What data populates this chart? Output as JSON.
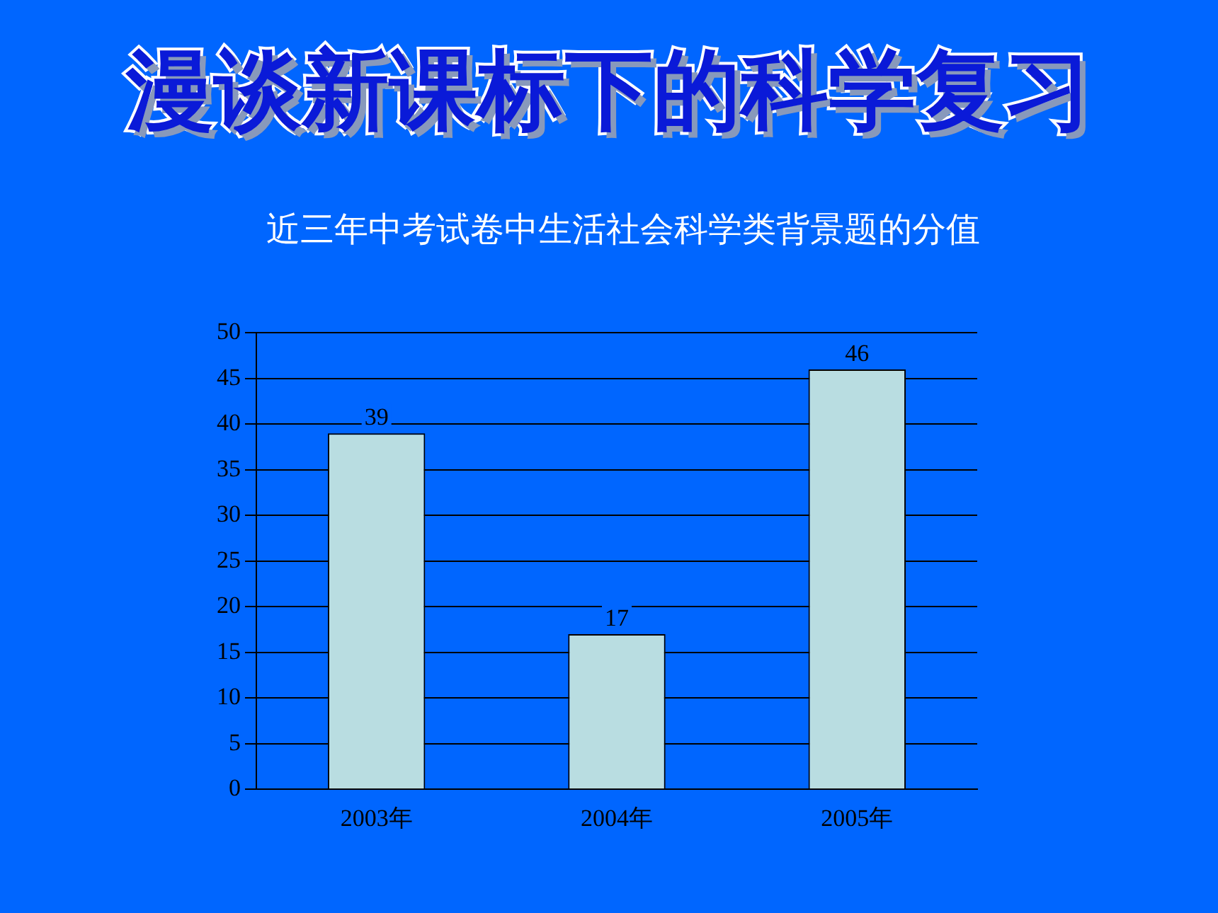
{
  "chart_data": {
    "type": "bar",
    "title": "漫谈新课标下的科学复习",
    "subtitle": "近三年中考试卷中生活社会科学类背景题的分值",
    "categories": [
      "2003年",
      "2004年",
      "2005年"
    ],
    "values": [
      39,
      17,
      46
    ],
    "color": "#b9dde1",
    "ylim": [
      0,
      50
    ],
    "yticks": [
      0,
      5,
      10,
      15,
      20,
      25,
      30,
      35,
      40,
      45,
      50
    ],
    "grid": "y",
    "data_labels": true,
    "legend": false
  }
}
